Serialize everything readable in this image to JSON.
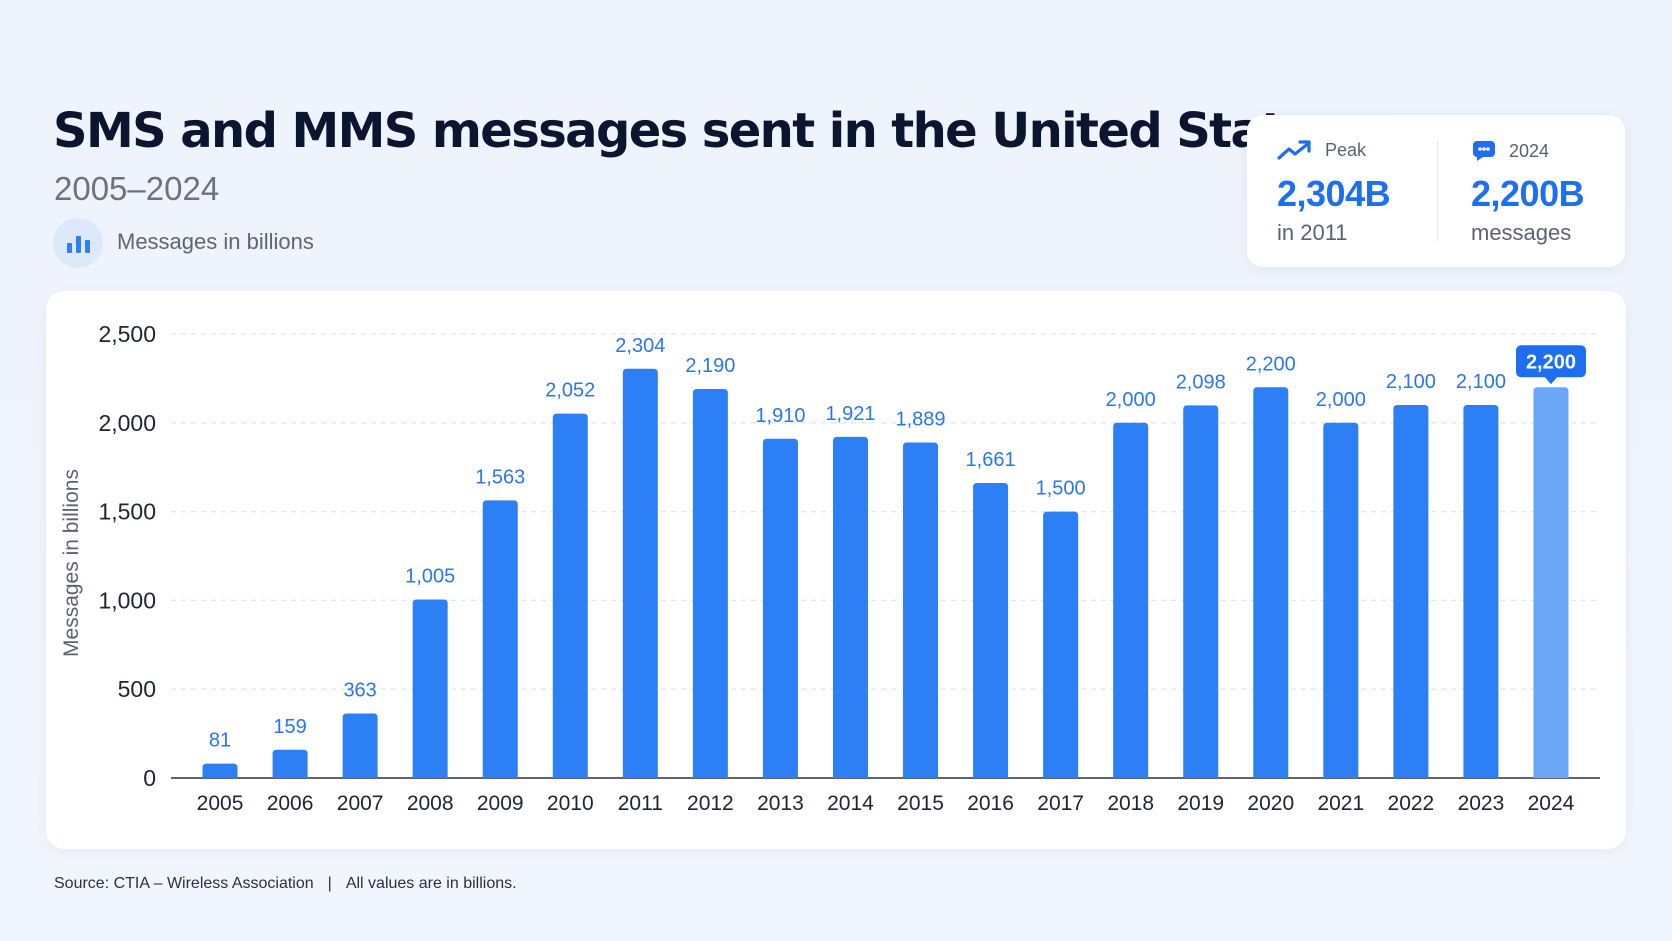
{
  "header": {
    "title": "SMS and MMS messages sent in the United States",
    "subtitle": "2005–2024",
    "unit_label": "Messages in billions",
    "unit_icon": "bar-chart-icon"
  },
  "stats": [
    {
      "icon": "trending-up-icon",
      "label": "Peak",
      "value": "2,304B",
      "note": "in 2011"
    },
    {
      "icon": "message-bubble-icon",
      "label": "2024",
      "value": "2,200B",
      "note": "messages"
    }
  ],
  "footer": {
    "source": "Source: CTIA – Wireless Association",
    "separator": "|",
    "note": "All values are in billions."
  },
  "colors": {
    "bar": "#2d7ff6",
    "highlight_bar": "#6aa8f7",
    "label": "#2a76ee",
    "accent": "#1e6ff0"
  },
  "chart_data": {
    "type": "bar",
    "title": "SMS and MMS messages sent in the United States",
    "ylabel": "Messages in billions",
    "xlabel": "",
    "ylim": [
      0,
      2500
    ],
    "yticks": [
      0,
      500,
      1000,
      1500,
      2000,
      2500
    ],
    "ytick_labels": [
      "0",
      "500",
      "1,000",
      "1,500",
      "2,000",
      "2,500"
    ],
    "grid": true,
    "categories": [
      "2005",
      "2006",
      "2007",
      "2008",
      "2009",
      "2010",
      "2011",
      "2012",
      "2013",
      "2014",
      "2015",
      "2016",
      "2017",
      "2018",
      "2019",
      "2020",
      "2021",
      "2022",
      "2023",
      "2024"
    ],
    "values": [
      81,
      159,
      363,
      1005,
      1563,
      2052,
      2304,
      2190,
      1910,
      1921,
      1889,
      1661,
      1500,
      2000,
      2098,
      2200,
      2000,
      2100,
      2100,
      2200
    ],
    "value_labels": [
      "81",
      "159",
      "363",
      "1,005",
      "1,563",
      "2,052",
      "2,304",
      "2,190",
      "1,910",
      "1,921",
      "1,889",
      "1,661",
      "1,500",
      "2,000",
      "2,098",
      "2,200",
      "2,000",
      "2,100",
      "2,100",
      "2,200"
    ],
    "highlight": {
      "category": "2024",
      "label": "2,200"
    }
  }
}
